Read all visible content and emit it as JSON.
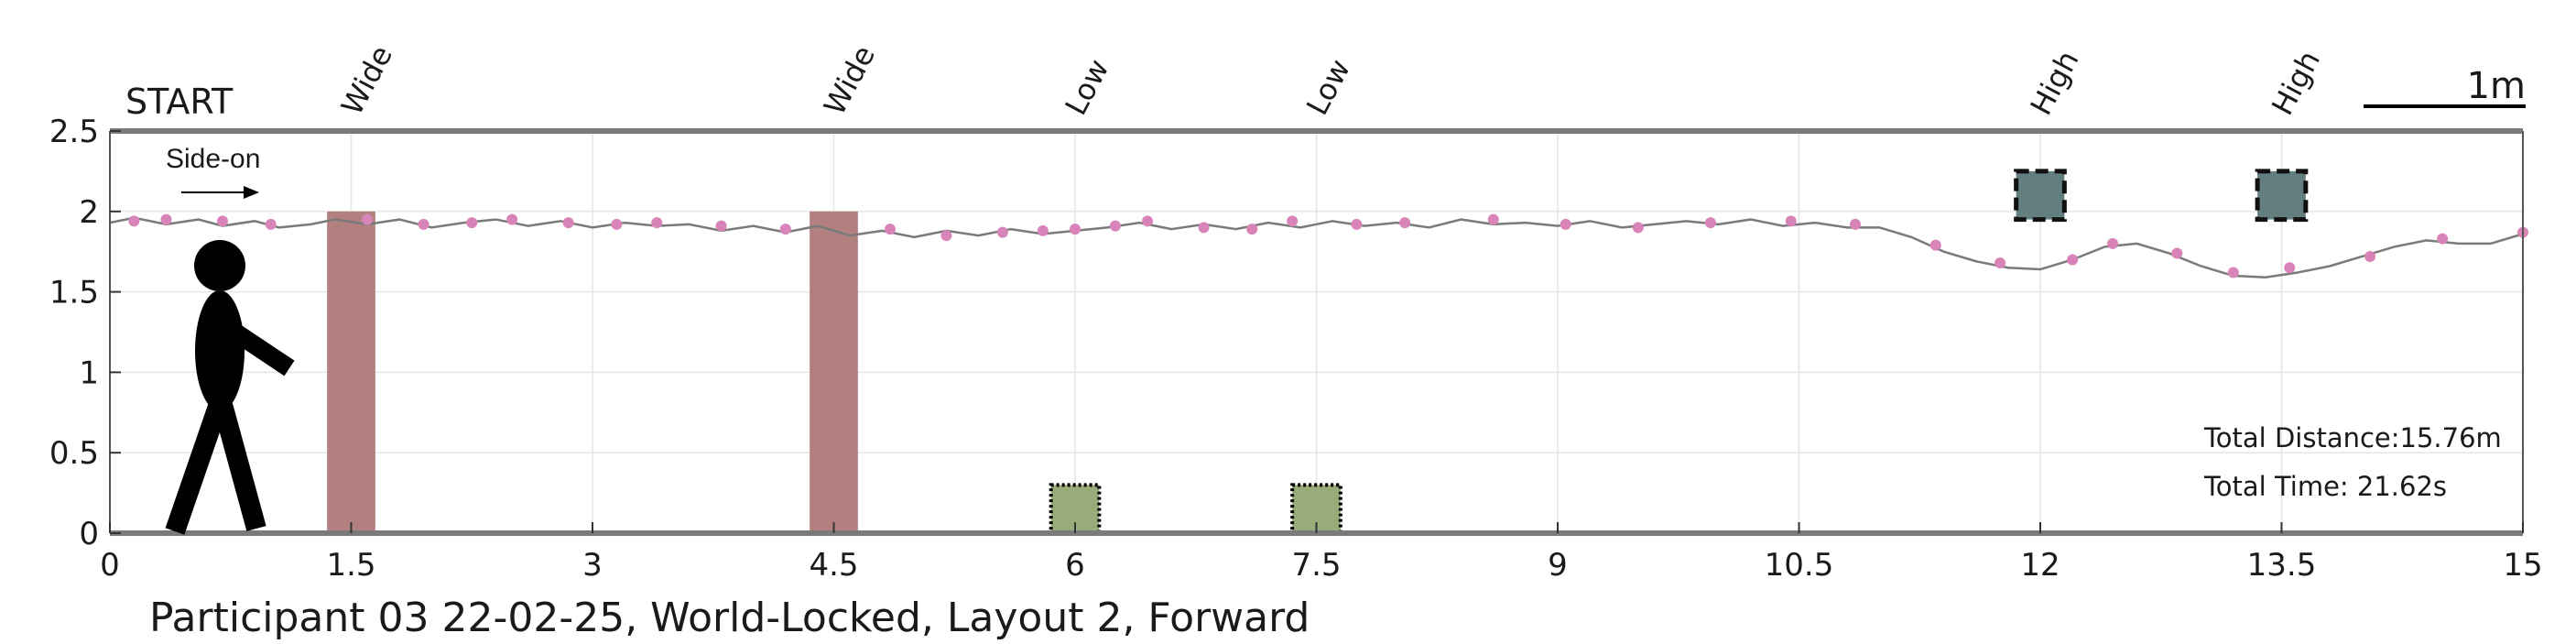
{
  "chart_data": {
    "type": "line",
    "title": "Participant 03 22-02-25, World-Locked, Layout 2, Forward",
    "xlabel": "",
    "ylabel": "",
    "xlim": [
      0,
      15
    ],
    "ylim": [
      0,
      2.5
    ],
    "grid": true,
    "x_ticks": [
      0,
      1.5,
      3,
      4.5,
      6,
      7.5,
      9,
      10.5,
      12,
      13.5,
      15
    ],
    "x_tick_labels": [
      "0",
      "1.5",
      "3",
      "4.5",
      "6",
      "7.5",
      "9",
      "10.5",
      "12",
      "13.5",
      "15"
    ],
    "y_ticks": [
      0,
      0.5,
      1,
      1.5,
      2,
      2.5
    ],
    "y_tick_labels": [
      "0",
      "0.5",
      "1",
      "1.5",
      "2",
      "2.5"
    ],
    "start_label": "START",
    "direction_label": "Side-on",
    "scale_bar": {
      "label": "1m",
      "length": 1
    },
    "stats": {
      "distance": "Total Distance:15.76m",
      "time": "Total Time: 21.62s"
    },
    "obstacles": [
      {
        "type": "Wide",
        "x": 1.5,
        "width": 0.3,
        "y0": 0,
        "y1": 2.0,
        "color": "#b38080"
      },
      {
        "type": "Wide",
        "x": 4.5,
        "width": 0.3,
        "y0": 0,
        "y1": 2.0,
        "color": "#b38080"
      },
      {
        "type": "Low",
        "x": 6.0,
        "width": 0.3,
        "y0": 0,
        "y1": 0.3,
        "color": "#9aab7a"
      },
      {
        "type": "Low",
        "x": 7.5,
        "width": 0.3,
        "y0": 0,
        "y1": 0.3,
        "color": "#9aab7a"
      },
      {
        "type": "High",
        "x": 12.0,
        "width": 0.3,
        "y0": 1.95,
        "y1": 2.25,
        "color": "#637e7e"
      },
      {
        "type": "High",
        "x": 13.5,
        "width": 0.3,
        "y0": 1.95,
        "y1": 2.25,
        "color": "#637e7e"
      }
    ],
    "series": [
      {
        "x": [
          0,
          0.15,
          0.35,
          0.55,
          0.7,
          0.9,
          1.05,
          1.25,
          1.4,
          1.6,
          1.8,
          2.0,
          2.2,
          2.4,
          2.6,
          2.8,
          3.0,
          3.2,
          3.4,
          3.6,
          3.8,
          4.0,
          4.2,
          4.4,
          4.6,
          4.8,
          5.0,
          5.2,
          5.4,
          5.6,
          5.8,
          6.0,
          6.2,
          6.4,
          6.6,
          6.8,
          7.0,
          7.2,
          7.4,
          7.6,
          7.8,
          8.0,
          8.2,
          8.4,
          8.6,
          8.8,
          9.0,
          9.2,
          9.4,
          9.6,
          9.8,
          10.0,
          10.2,
          10.4,
          10.6,
          10.8,
          11.0,
          11.2,
          11.4,
          11.6,
          11.8,
          12.0,
          12.2,
          12.4,
          12.6,
          12.8,
          13.0,
          13.2,
          13.4,
          13.6,
          13.8,
          14.0,
          14.2,
          14.4,
          14.6,
          14.8,
          15.0
        ],
        "y": [
          1.93,
          1.96,
          1.92,
          1.95,
          1.91,
          1.94,
          1.9,
          1.92,
          1.95,
          1.92,
          1.95,
          1.9,
          1.93,
          1.95,
          1.91,
          1.94,
          1.9,
          1.93,
          1.91,
          1.92,
          1.88,
          1.91,
          1.87,
          1.91,
          1.85,
          1.88,
          1.84,
          1.88,
          1.85,
          1.89,
          1.86,
          1.88,
          1.9,
          1.93,
          1.89,
          1.92,
          1.89,
          1.93,
          1.9,
          1.94,
          1.91,
          1.93,
          1.9,
          1.95,
          1.92,
          1.93,
          1.91,
          1.94,
          1.9,
          1.92,
          1.94,
          1.92,
          1.95,
          1.91,
          1.93,
          1.9,
          1.9,
          1.84,
          1.75,
          1.69,
          1.65,
          1.64,
          1.7,
          1.78,
          1.8,
          1.74,
          1.66,
          1.6,
          1.59,
          1.62,
          1.66,
          1.72,
          1.78,
          1.82,
          1.8,
          1.8,
          1.86
        ],
        "marker_x": [
          0.15,
          0.35,
          0.7,
          1.0,
          1.6,
          1.95,
          2.25,
          2.5,
          2.85,
          3.15,
          3.4,
          3.8,
          4.2,
          4.85,
          5.2,
          5.55,
          5.8,
          6.0,
          6.25,
          6.45,
          6.8,
          7.1,
          7.35,
          7.75,
          8.05,
          8.6,
          9.05,
          9.5,
          9.95,
          10.45,
          10.85,
          11.35,
          11.75,
          12.2,
          12.45,
          12.85,
          13.2,
          13.55,
          14.05,
          14.5,
          15.0
        ],
        "marker_y": [
          1.94,
          1.95,
          1.94,
          1.92,
          1.95,
          1.92,
          1.93,
          1.95,
          1.93,
          1.92,
          1.93,
          1.91,
          1.89,
          1.89,
          1.85,
          1.87,
          1.88,
          1.89,
          1.91,
          1.94,
          1.9,
          1.89,
          1.94,
          1.92,
          1.93,
          1.95,
          1.92,
          1.9,
          1.93,
          1.94,
          1.92,
          1.79,
          1.68,
          1.7,
          1.8,
          1.74,
          1.62,
          1.65,
          1.72,
          1.83,
          1.87
        ],
        "line_color": "#7a7a7a",
        "marker_color": "#d884b8"
      }
    ]
  }
}
